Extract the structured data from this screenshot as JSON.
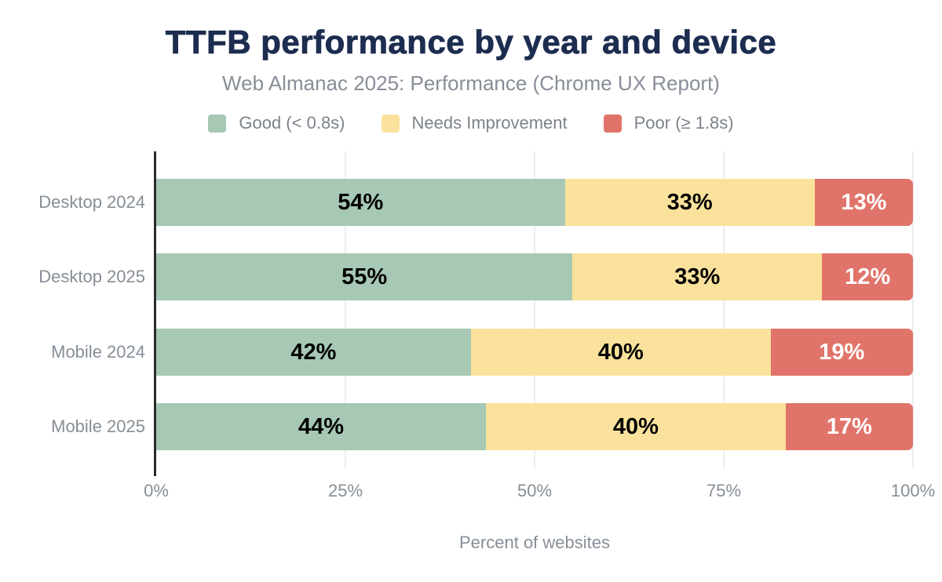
{
  "title": "TTFB performance by year and device",
  "subtitle": "Web Almanac 2025: Performance (Chrome UX Report)",
  "colors": {
    "title": "#1d2d50",
    "muted_text": "#868e96",
    "axis_line": "#2b2b2b",
    "gridline": "#ededed",
    "good": "#a6c8b4",
    "needs_improvement": "#fbe29c",
    "poor": "#e1746a"
  },
  "legend": [
    {
      "label": "Good (< 0.8s)",
      "color": "#a6c8b4"
    },
    {
      "label": "Needs Improvement",
      "color": "#fbe29c"
    },
    {
      "label": "Poor (≥ 1.8s)",
      "color": "#e1746a"
    }
  ],
  "chart_data": {
    "type": "bar",
    "orientation": "horizontal",
    "stacked": true,
    "title": "TTFB performance by year and device",
    "subtitle": "Web Almanac 2025: Performance (Chrome UX Report)",
    "categories": [
      "Desktop 2024",
      "Desktop 2025",
      "Mobile 2024",
      "Mobile 2025"
    ],
    "series": [
      {
        "name": "Good (< 0.8s)",
        "color": "#a6c8b4",
        "label_color": "#000000",
        "values": [
          54,
          55,
          42,
          44
        ]
      },
      {
        "name": "Needs Improvement",
        "color": "#fbe29c",
        "label_color": "#000000",
        "values": [
          33,
          33,
          40,
          40
        ]
      },
      {
        "name": "Poor (≥ 1.8s)",
        "color": "#e1746a",
        "label_color": "#ffffff",
        "values": [
          13,
          12,
          19,
          17
        ]
      }
    ],
    "value_suffix": "%",
    "xlabel": "Percent of websites",
    "ylabel": "",
    "x_ticks": [
      "0%",
      "25%",
      "50%",
      "75%",
      "100%"
    ],
    "xlim": [
      0,
      100
    ],
    "grid": "vertical",
    "legend_position": "top"
  }
}
